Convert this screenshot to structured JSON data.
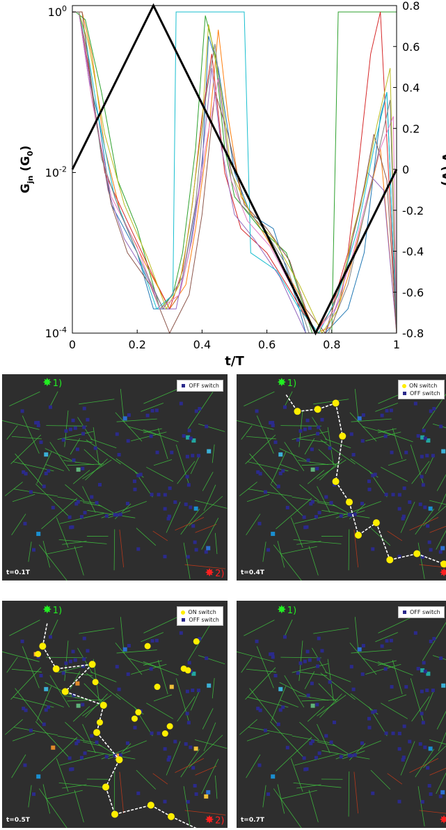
{
  "colors": {
    "on_switch": "#ffee00",
    "off_switch": "#2b2a8c",
    "panel_bg": "#2e2e2e",
    "source": "#22ee22",
    "drain": "#ff2020",
    "wire_green": "#3fbf3f",
    "wire_red": "#c23a1a"
  },
  "chart_data": [
    {
      "type": "line",
      "xlabel": "t/T",
      "ylabel_left": "G_jn (G_0)",
      "ylabel_right": "V (V)",
      "xlim": [
        0,
        1
      ],
      "ylim_left": [
        0.0001,
        1.2
      ],
      "yscale_left": "log",
      "ylim_right": [
        -0.8,
        0.8
      ],
      "x_ticks": [
        "0",
        "0.2",
        "0.4",
        "0.6",
        "0.8",
        "1"
      ],
      "y_left_ticks": [
        {
          "value": 1,
          "base": "10",
          "exp": "0"
        },
        {
          "value": 0.01,
          "base": "10",
          "exp": "-2"
        },
        {
          "value": 0.0001,
          "base": "10",
          "exp": "-4"
        }
      ],
      "y_right_ticks": [
        "0.8",
        "0.6",
        "0.4",
        "0.2",
        "0",
        "-0.2",
        "-0.4",
        "-0.6",
        "-0.8"
      ],
      "voltage": {
        "x": [
          0,
          0.25,
          0.75,
          1.0
        ],
        "y": [
          0,
          0.8,
          -0.8,
          0
        ]
      },
      "conductance_series": [
        {
          "color": "#1f77b4",
          "x": [
            0,
            0.02,
            0.05,
            0.08,
            0.12,
            0.2,
            0.25,
            0.3,
            0.33,
            0.36,
            0.4,
            0.42,
            0.45,
            0.5,
            0.55,
            0.62,
            0.7,
            0.72,
            0.78,
            0.85,
            0.9,
            0.95,
            0.97,
            1.0
          ],
          "y": [
            1,
            1,
            0.15,
            0.05,
            0.004,
            0.001,
            0.0002,
            0.0002,
            0.0003,
            0.001,
            0.01,
            0.5,
            0.2,
            0.01,
            0.003,
            0.002,
            0.0002,
            0.0001,
            0.0001,
            0.0002,
            0.001,
            0.05,
            0.1,
            0.0001
          ]
        },
        {
          "color": "#ff7f0e",
          "x": [
            0,
            0.03,
            0.06,
            0.1,
            0.15,
            0.22,
            0.3,
            0.35,
            0.38,
            0.42,
            0.45,
            0.48,
            0.52,
            0.6,
            0.7,
            0.75,
            0.8,
            0.85,
            0.9,
            0.95,
            1.0
          ],
          "y": [
            1,
            1,
            0.3,
            0.02,
            0.003,
            0.0008,
            0.0002,
            0.0004,
            0.002,
            0.03,
            0.6,
            0.05,
            0.005,
            0.0015,
            0.0003,
            0.0001,
            0.00012,
            0.0005,
            0.003,
            0.02,
            0.0001
          ]
        },
        {
          "color": "#2ca02c",
          "x": [
            0,
            0.01,
            0.04,
            0.09,
            0.14,
            0.2,
            0.27,
            0.31,
            0.34,
            0.38,
            0.41,
            0.44,
            0.47,
            0.5,
            0.58,
            0.66,
            0.74,
            0.8,
            0.82,
            0.84,
            0.9,
            0.95,
            1.0
          ],
          "y": [
            1,
            1,
            0.8,
            0.1,
            0.008,
            0.002,
            0.0002,
            0.0003,
            0.001,
            0.02,
            0.9,
            0.3,
            0.02,
            0.005,
            0.002,
            0.001,
            0.0001,
            0.0001,
            1,
            1,
            1,
            1,
            1
          ]
        },
        {
          "color": "#d62728",
          "x": [
            0,
            0.02,
            0.05,
            0.1,
            0.18,
            0.25,
            0.3,
            0.34,
            0.37,
            0.4,
            0.43,
            0.47,
            0.52,
            0.6,
            0.68,
            0.75,
            0.8,
            0.85,
            0.88,
            0.92,
            0.95,
            1.0
          ],
          "y": [
            1,
            1,
            0.2,
            0.01,
            0.002,
            0.0005,
            0.0002,
            0.0006,
            0.004,
            0.05,
            0.3,
            0.01,
            0.002,
            0.001,
            0.0003,
            0.0001,
            0.0002,
            0.001,
            0.01,
            0.3,
            1,
            0.0001
          ]
        },
        {
          "color": "#9467bd",
          "x": [
            0,
            0.02,
            0.06,
            0.11,
            0.16,
            0.22,
            0.28,
            0.32,
            0.35,
            0.39,
            0.43,
            0.46,
            0.5,
            0.56,
            0.64,
            0.72,
            0.78,
            0.83,
            0.87,
            0.91,
            0.96,
            1.0
          ],
          "y": [
            1,
            1,
            0.1,
            0.006,
            0.0015,
            0.0006,
            0.0002,
            0.0002,
            0.0008,
            0.006,
            0.2,
            0.02,
            0.003,
            0.0015,
            0.0005,
            0.0001,
            0.0001,
            0.0003,
            0.002,
            0.01,
            0.006,
            0.0001
          ]
        },
        {
          "color": "#17becf",
          "x": [
            0,
            0.02,
            0.04,
            0.08,
            0.13,
            0.2,
            0.26,
            0.31,
            0.32,
            0.45,
            0.5,
            0.53,
            0.55,
            0.63,
            0.7,
            0.76,
            0.82,
            0.88,
            0.93,
            0.97,
            1.0
          ],
          "y": [
            1,
            1,
            0.5,
            0.05,
            0.005,
            0.001,
            0.0002,
            0.0003,
            1,
            1,
            1,
            1,
            0.001,
            0.0006,
            0.0002,
            0.0001,
            0.0003,
            0.002,
            0.02,
            0.1,
            0.0001
          ]
        },
        {
          "color": "#8c564b",
          "x": [
            0,
            0.03,
            0.07,
            0.12,
            0.17,
            0.24,
            0.3,
            0.36,
            0.4,
            0.44,
            0.48,
            0.53,
            0.6,
            0.67,
            0.72,
            0.78,
            0.84,
            0.89,
            0.93,
            0.97,
            1.0
          ],
          "y": [
            1,
            1,
            0.05,
            0.004,
            0.001,
            0.0004,
            0.0001,
            0.0003,
            0.003,
            0.1,
            0.03,
            0.004,
            0.002,
            0.0008,
            0.0002,
            0.0001,
            0.0006,
            0.004,
            0.03,
            0.008,
            0.0001
          ]
        },
        {
          "color": "#bcbd22",
          "x": [
            0,
            0.02,
            0.05,
            0.1,
            0.16,
            0.23,
            0.29,
            0.33,
            0.36,
            0.4,
            0.42,
            0.46,
            0.49,
            0.55,
            0.62,
            0.7,
            0.77,
            0.82,
            0.86,
            0.9,
            0.94,
            0.98,
            1.0
          ],
          "y": [
            1,
            1,
            0.4,
            0.03,
            0.004,
            0.0009,
            0.0002,
            0.0004,
            0.002,
            0.04,
            0.7,
            0.1,
            0.01,
            0.003,
            0.0015,
            0.0004,
            0.0001,
            0.0002,
            0.0015,
            0.006,
            0.04,
            0.2,
            0.0001
          ]
        },
        {
          "color": "#e377c2",
          "x": [
            0,
            0.02,
            0.06,
            0.12,
            0.2,
            0.27,
            0.33,
            0.37,
            0.41,
            0.45,
            0.49,
            0.54,
            0.61,
            0.69,
            0.75,
            0.81,
            0.86,
            0.91,
            0.95,
            0.99,
            1.0
          ],
          "y": [
            1,
            1,
            0.08,
            0.005,
            0.0012,
            0.0002,
            0.0003,
            0.0015,
            0.02,
            0.15,
            0.008,
            0.0025,
            0.0012,
            0.0003,
            0.0001,
            0.0002,
            0.0008,
            0.005,
            0.02,
            0.05,
            0.0001
          ]
        },
        {
          "color": "#7f7f7f",
          "x": [
            0,
            0.02,
            0.05,
            0.09,
            0.15,
            0.21,
            0.28,
            0.34,
            0.38,
            0.41,
            0.44,
            0.48,
            0.52,
            0.59,
            0.66,
            0.73,
            0.79,
            0.85,
            0.9,
            0.94,
            0.98,
            1.0
          ],
          "y": [
            1,
            1,
            0.25,
            0.015,
            0.003,
            0.0008,
            0.0002,
            0.0005,
            0.004,
            0.08,
            0.4,
            0.015,
            0.004,
            0.002,
            0.0007,
            0.0001,
            0.0001,
            0.0004,
            0.003,
            0.015,
            0.08,
            0.0001
          ]
        }
      ]
    },
    {
      "type": "network_snapshot",
      "label": "t=0.1T",
      "source_label": "1)",
      "drain_label": "2)",
      "legend": [
        "OFF switch"
      ],
      "on_count": 0,
      "path": []
    },
    {
      "type": "network_snapshot",
      "label": "t=0.4T",
      "source_label": "1)",
      "drain_label": "",
      "legend": [
        "ON switch",
        "OFF switch"
      ],
      "on_count": 12,
      "path": [
        [
          0.22,
          0.1
        ],
        [
          0.27,
          0.18
        ],
        [
          0.36,
          0.17
        ],
        [
          0.44,
          0.14
        ],
        [
          0.47,
          0.3
        ],
        [
          0.44,
          0.52
        ],
        [
          0.5,
          0.62
        ],
        [
          0.54,
          0.78
        ],
        [
          0.62,
          0.72
        ],
        [
          0.68,
          0.9
        ],
        [
          0.8,
          0.87
        ],
        [
          0.92,
          0.92
        ],
        [
          0.96,
          0.98
        ]
      ]
    },
    {
      "type": "network_snapshot",
      "label": "t=0.5T",
      "source_label": "1)",
      "drain_label": "2)",
      "legend": [
        "ON switch",
        "OFF switch"
      ],
      "on_count": 26,
      "path": [
        [
          0.2,
          0.1
        ],
        [
          0.18,
          0.2
        ],
        [
          0.24,
          0.3
        ],
        [
          0.4,
          0.28
        ],
        [
          0.28,
          0.4
        ],
        [
          0.45,
          0.46
        ],
        [
          0.42,
          0.58
        ],
        [
          0.52,
          0.7
        ],
        [
          0.46,
          0.82
        ],
        [
          0.5,
          0.94
        ],
        [
          0.66,
          0.9
        ],
        [
          0.75,
          0.95
        ],
        [
          0.9,
          1.02
        ]
      ]
    },
    {
      "type": "network_snapshot",
      "label": "t=0.7T",
      "source_label": "1)",
      "drain_label": "",
      "legend": [
        "OFF switch"
      ],
      "on_count": 0,
      "path": []
    }
  ]
}
